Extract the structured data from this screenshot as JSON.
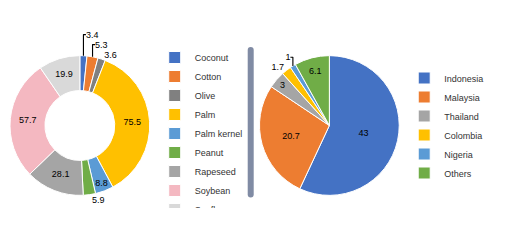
{
  "chart_data": [
    {
      "type": "donut",
      "categories": [
        "Coconut",
        "Cotton",
        "Olive",
        "Palm",
        "Palm kernel",
        "Peanut",
        "Rapeseed",
        "Soybean",
        "Sunflower"
      ],
      "values": [
        3.4,
        5.3,
        3.6,
        75.5,
        8.8,
        5.9,
        28.1,
        57.7,
        19.9
      ],
      "colors": [
        "#4472c4",
        "#ed7d31",
        "#808080",
        "#ffc000",
        "#5b9bd5",
        "#70ad47",
        "#a5a5a5",
        "#f4b8c1",
        "#d9d9d9"
      ],
      "data_labels": true,
      "legend": "right"
    },
    {
      "type": "pie",
      "categories": [
        "Indonesia",
        "Malaysia",
        "Thailand",
        "Colombia",
        "Nigeria",
        "Others"
      ],
      "values": [
        43,
        20.7,
        3,
        1.7,
        1,
        6.1
      ],
      "colors": [
        "#4472c4",
        "#ed7d31",
        "#a5a5a5",
        "#ffc000",
        "#5b9bd5",
        "#70ad47"
      ],
      "data_labels": true,
      "legend": "right"
    }
  ]
}
